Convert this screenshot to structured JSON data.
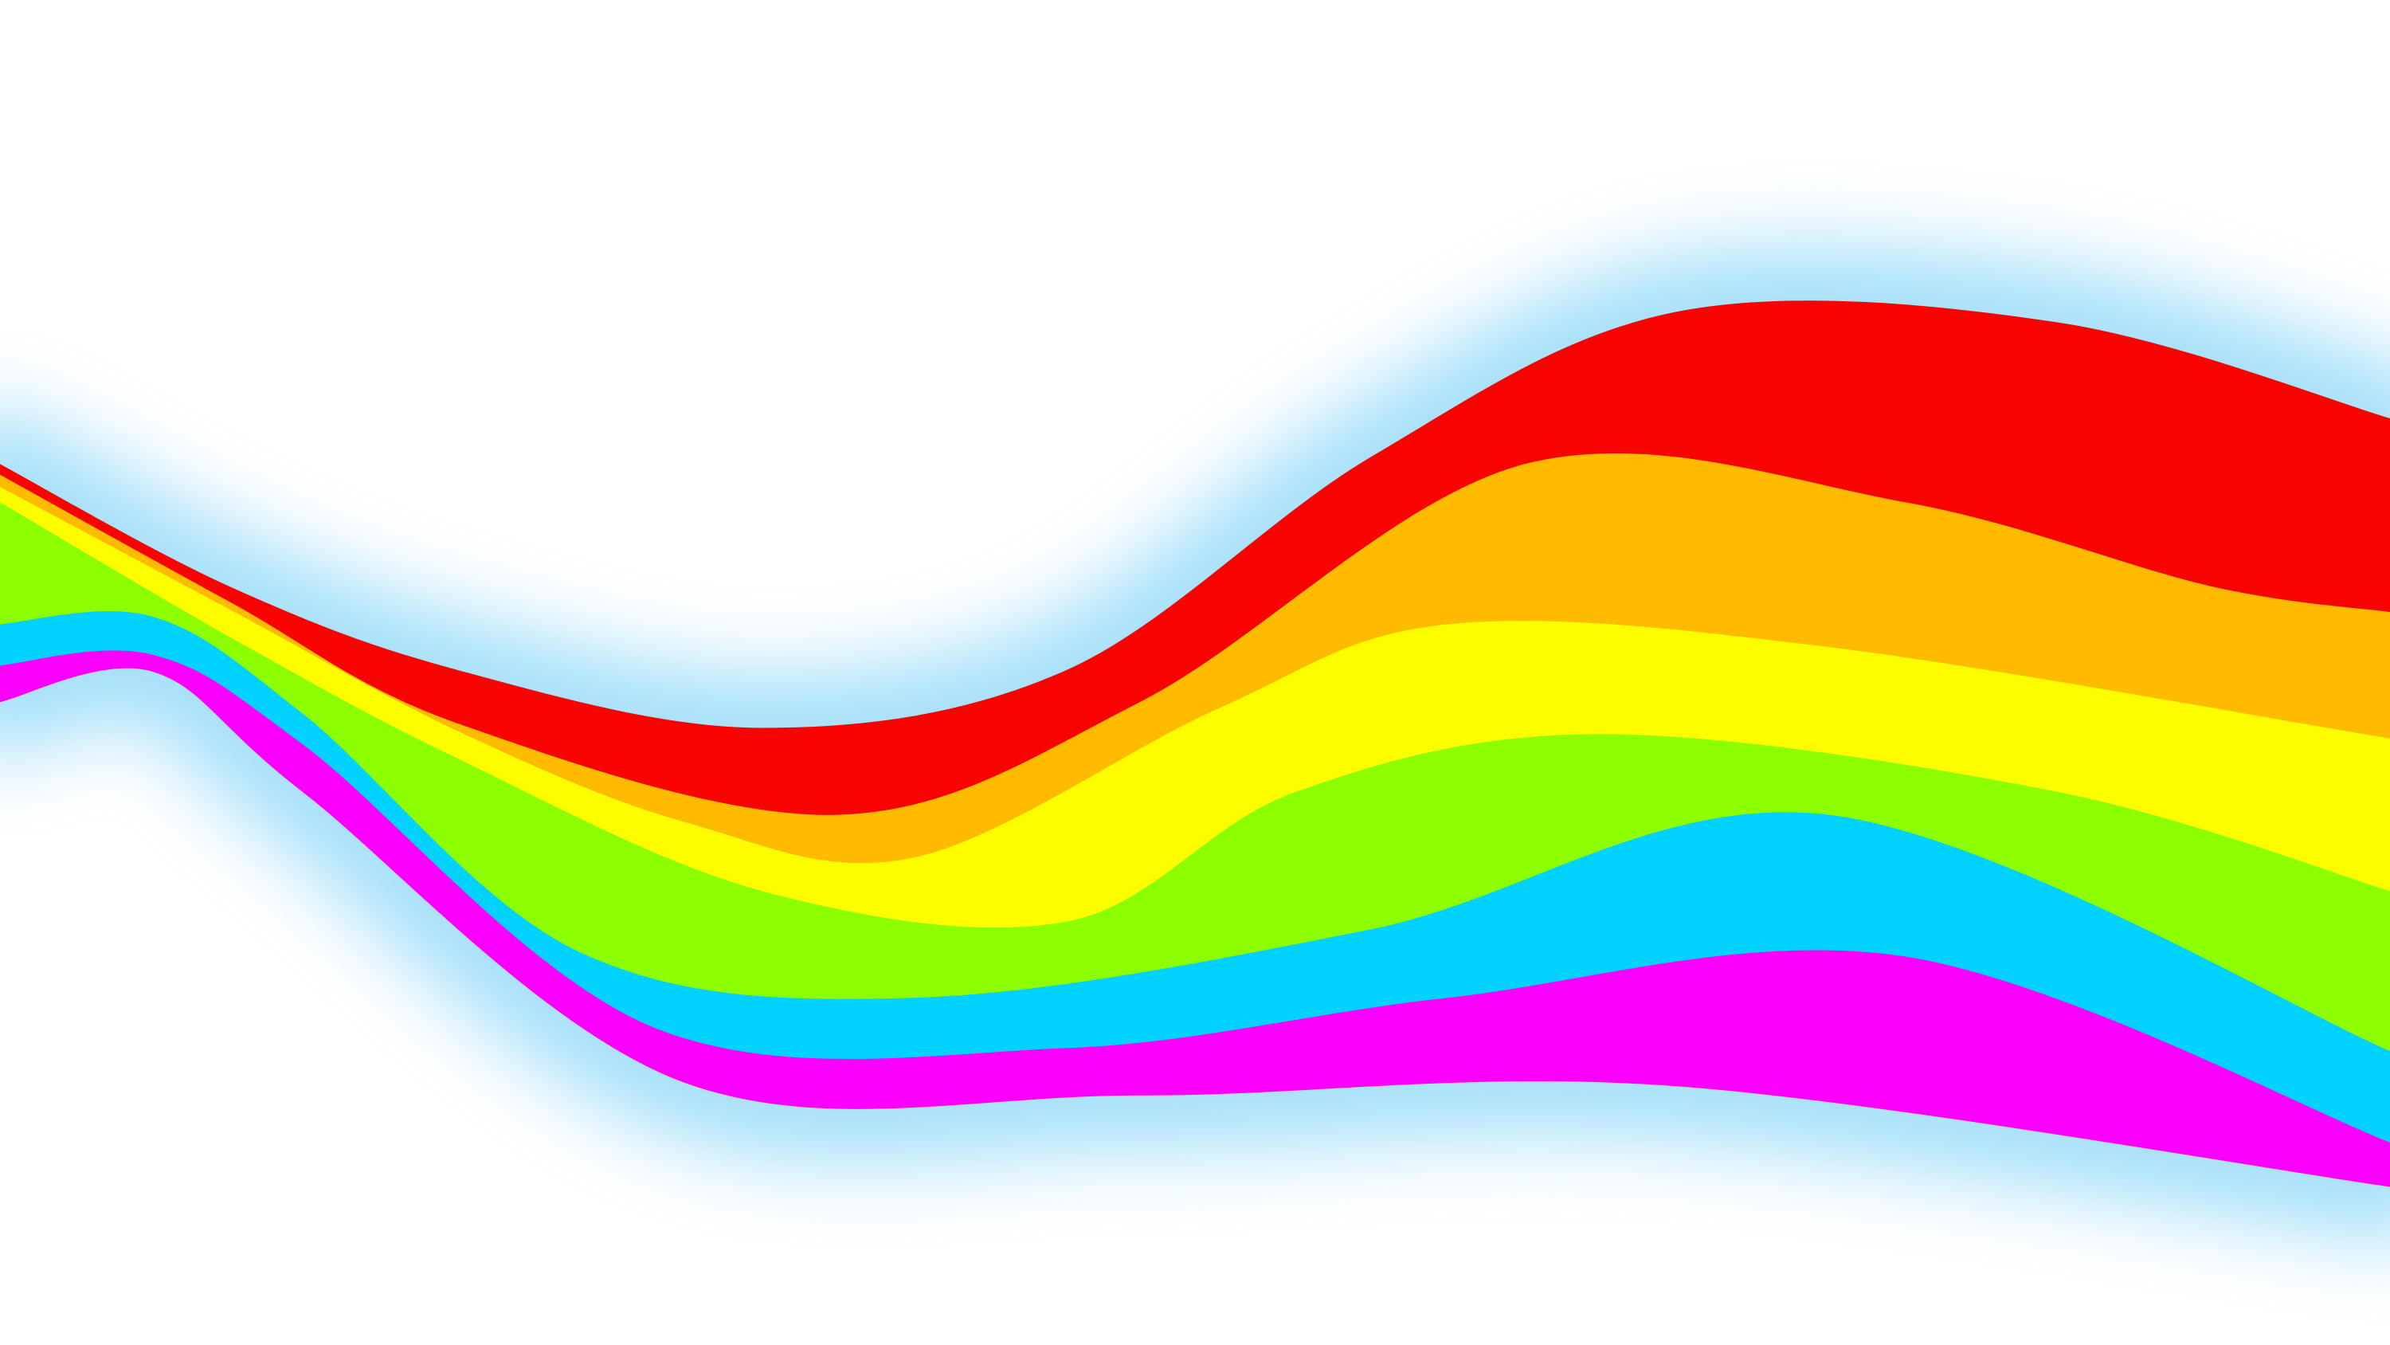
{
  "background": {
    "color": "#ffffff",
    "glow_color": "#5cc6f5"
  },
  "rainbow": {
    "bands": [
      {
        "name": "red",
        "color": "#f80300"
      },
      {
        "name": "orange",
        "color": "#febb00"
      },
      {
        "name": "yellow",
        "color": "#fefd00"
      },
      {
        "name": "green",
        "color": "#8cfe00"
      },
      {
        "name": "cyan",
        "color": "#00d2fe"
      },
      {
        "name": "magenta",
        "color": "#fd00fb"
      }
    ]
  }
}
